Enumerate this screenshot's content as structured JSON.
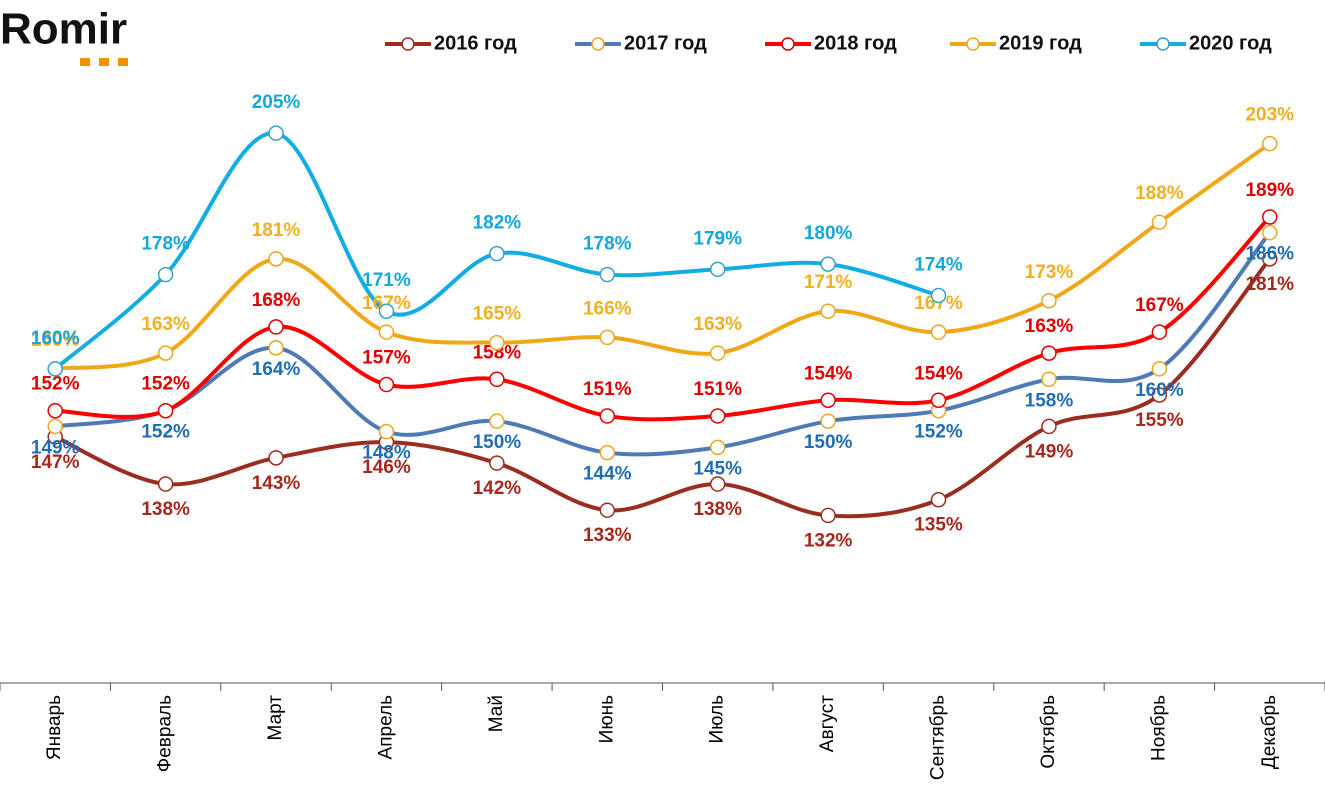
{
  "logo": "Romir",
  "chart_data": {
    "type": "line",
    "categories": [
      "Январь",
      "Февраль",
      "Март",
      "Апрель",
      "Май",
      "Июнь",
      "Июль",
      "Август",
      "Сентябрь",
      "Октябрь",
      "Ноябрь",
      "Декабрь"
    ],
    "ylim": [
      100,
      210
    ],
    "series": [
      {
        "name": "2016 год",
        "color": "#9b2d20",
        "marker_color": "#9b2d20",
        "label_color": "#a5281e",
        "values": [
          147,
          138,
          143,
          146,
          142,
          133,
          138,
          132,
          135,
          149,
          155,
          181
        ],
        "value_labels": [
          "147%",
          "138%",
          "143%",
          "146%",
          "142%",
          "133%",
          "138%",
          "132%",
          "135%",
          "149%",
          "155%",
          "181%"
        ]
      },
      {
        "name": "2017 год",
        "color": "#4f7ab8",
        "marker_color": "#e8a825",
        "label_color": "#1f6eb5",
        "values": [
          149,
          152,
          164,
          148,
          150,
          144,
          145,
          150,
          152,
          158,
          160,
          186
        ],
        "value_labels": [
          "149%",
          "152%",
          "164%",
          "148%",
          "150%",
          "144%",
          "145%",
          "150%",
          "152%",
          "158%",
          "160%",
          "186%"
        ]
      },
      {
        "name": "2018 год",
        "color": "#ff0000",
        "marker_color": "#e00000",
        "label_color": "#e00000",
        "values": [
          152,
          152,
          168,
          157,
          158,
          151,
          151,
          154,
          154,
          163,
          167,
          189
        ],
        "value_labels": [
          "152%",
          "152%",
          "168%",
          "157%",
          "158%",
          "151%",
          "151%",
          "154%",
          "154%",
          "163%",
          "167%",
          "189%"
        ]
      },
      {
        "name": "2019 год",
        "color": "#f0a818",
        "marker_color": "#e8a825",
        "label_color": "#f0b020",
        "values": [
          160,
          163,
          181,
          167,
          165,
          166,
          163,
          171,
          167,
          173,
          188,
          203
        ],
        "value_labels": [
          "160%",
          "163%",
          "181%",
          "167%",
          "165%",
          "166%",
          "163%",
          "171%",
          "167%",
          "173%",
          "188%",
          "203%"
        ]
      },
      {
        "name": "2020 год",
        "color": "#12aee3",
        "marker_color": "#3aa0c8",
        "label_color": "#14a6df",
        "values": [
          160,
          178,
          205,
          171,
          182,
          178,
          179,
          180,
          174,
          null,
          null,
          null
        ],
        "value_labels": [
          "160%",
          "178%",
          "205%",
          "171%",
          "182%",
          "178%",
          "179%",
          "180%",
          "174%",
          null,
          null,
          null
        ]
      }
    ]
  }
}
